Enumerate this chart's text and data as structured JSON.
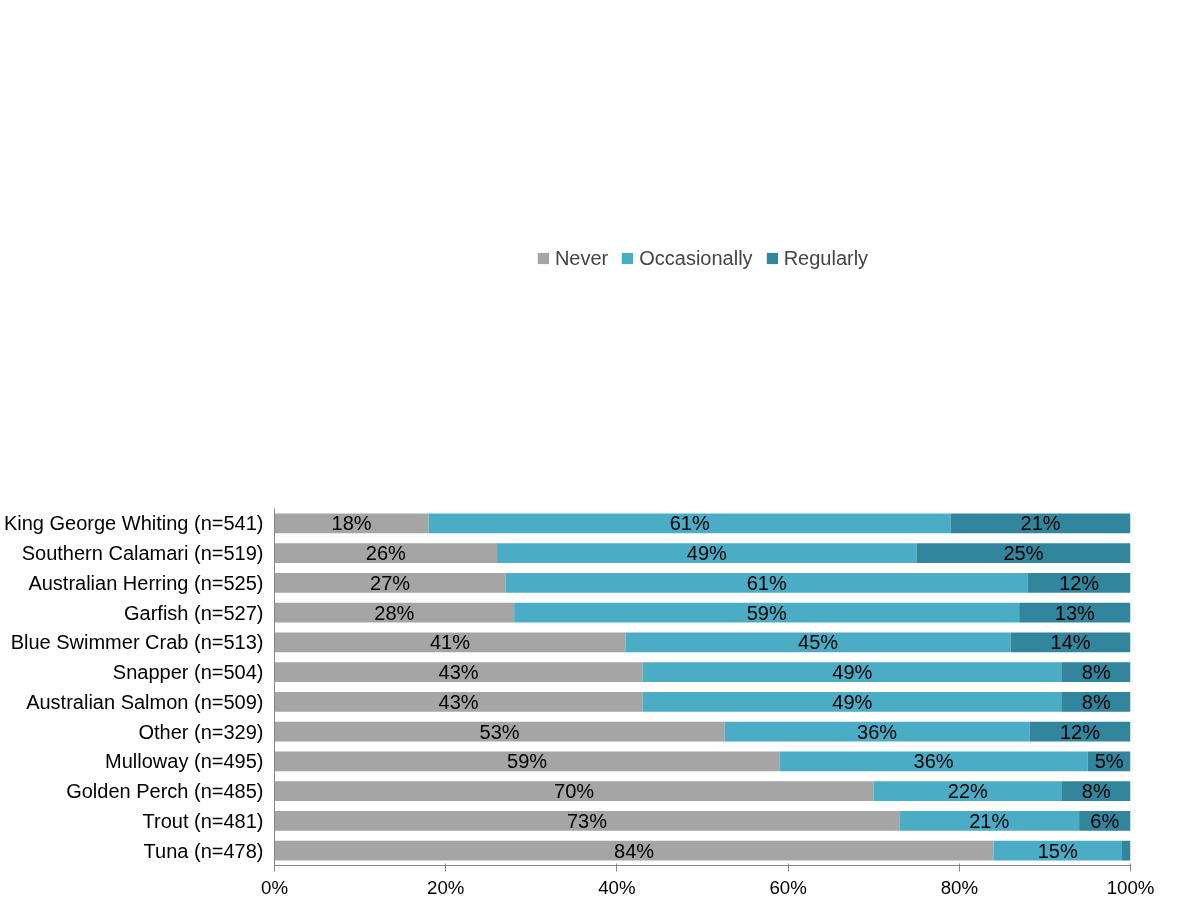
{
  "chart_data": {
    "type": "bar",
    "orientation": "horizontal",
    "stacked": true,
    "legend": "top",
    "grid": false,
    "categories": [
      "King George Whiting (n=541)",
      "Southern Calamari (n=519)",
      "Australian Herring (n=525)",
      "Garfish (n=527)",
      "Blue Swimmer Crab (n=513)",
      "Snapper (n=504)",
      "Australian Salmon (n=509)",
      "Other (n=329)",
      "Mulloway (n=495)",
      "Golden Perch (n=485)",
      "Trout (n=481)",
      "Tuna (n=478)"
    ],
    "series": [
      {
        "name": "Never",
        "color": "#a5a5a5",
        "values": [
          18,
          26,
          27,
          28,
          41,
          43,
          43,
          52.6,
          59,
          70,
          73,
          84
        ],
        "value_labels": [
          "18%",
          "26%",
          "27%",
          "28%",
          "41%",
          "43%",
          "43%",
          "53%",
          "59%",
          "70%",
          "73%",
          "84%"
        ]
      },
      {
        "name": "Occasionally",
        "color": "#4bacc6",
        "values": [
          61,
          49,
          61,
          59,
          45,
          49,
          49,
          35.6,
          36,
          22,
          21,
          15
        ],
        "value_labels": [
          "61%",
          "49%",
          "61%",
          "59%",
          "45%",
          "49%",
          "49%",
          "36%",
          "36%",
          "22%",
          "21%",
          "15%"
        ]
      },
      {
        "name": "Regularly",
        "color": "#31859c",
        "values": [
          21,
          25,
          12,
          13,
          14,
          8,
          8,
          11.8,
          5,
          8,
          6,
          1
        ],
        "value_labels": [
          "21%",
          "25%",
          "12%",
          "13%",
          "14%",
          "8%",
          "8%",
          "12%",
          "5%",
          "8%",
          "6%",
          null
        ]
      }
    ],
    "xlim": [
      0,
      100
    ],
    "xticks": [
      {
        "value": 0,
        "label": "0%"
      },
      {
        "value": 20,
        "label": "20%"
      },
      {
        "value": 40,
        "label": "40%"
      },
      {
        "value": 60,
        "label": "60%"
      },
      {
        "value": 80,
        "label": "80%"
      },
      {
        "value": 100,
        "label": "100%"
      }
    ]
  }
}
